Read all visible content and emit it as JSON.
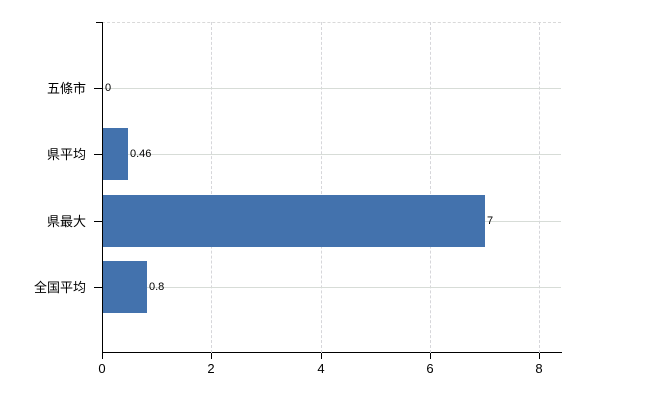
{
  "chart_data": {
    "type": "bar",
    "orientation": "horizontal",
    "title": "",
    "categories": [
      "五條市",
      "県平均",
      "県最大",
      "全国平均"
    ],
    "values": [
      0,
      0.46,
      7,
      0.8
    ],
    "value_labels": [
      "0",
      "0.46",
      "7",
      "0.8"
    ],
    "x_ticks": [
      0,
      2,
      4,
      6,
      8
    ],
    "x_tick_labels": [
      "0",
      "2",
      "4",
      "6",
      "8"
    ],
    "xlim": [
      0,
      8.4
    ],
    "grid": true,
    "legend": false,
    "colors": {
      "bar": "#4372ad",
      "axis": "#000000",
      "h_gridline": "#d7dcd7",
      "v_gridline": "#d6d6da",
      "background": "#ffffff",
      "text": "#000000"
    }
  }
}
